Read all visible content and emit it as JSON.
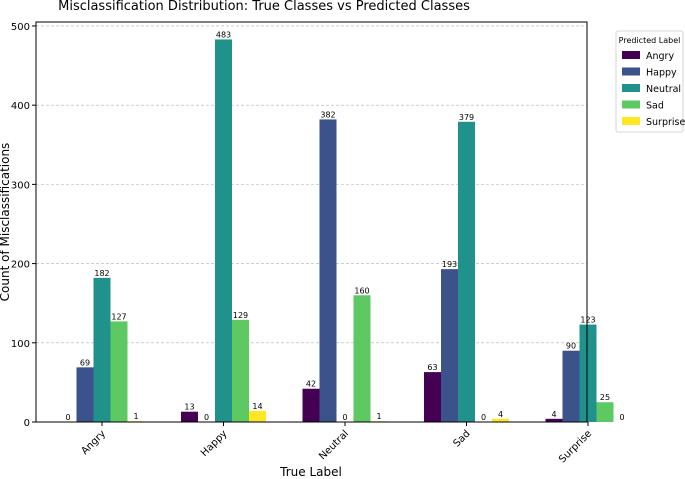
{
  "chart_data": {
    "type": "bar",
    "title": "Misclassification Distribution: True Classes vs Predicted Classes",
    "xlabel": "True Label",
    "ylabel": "Count of Misclassifications",
    "ylim": [
      0,
      505
    ],
    "yticks": [
      0,
      100,
      200,
      300,
      400,
      500
    ],
    "grid": true,
    "legend_title": "Predicted Label",
    "legend_position": "outside-right",
    "categories": [
      "Angry",
      "Happy",
      "Neutral",
      "Sad",
      "Surprise"
    ],
    "series": [
      {
        "name": "Angry",
        "color": "#440154",
        "values": [
          0,
          13,
          42,
          63,
          4
        ]
      },
      {
        "name": "Happy",
        "color": "#3b528b",
        "values": [
          69,
          0,
          382,
          193,
          90
        ]
      },
      {
        "name": "Neutral",
        "color": "#21918c",
        "values": [
          182,
          483,
          0,
          379,
          123
        ]
      },
      {
        "name": "Sad",
        "color": "#5ec962",
        "values": [
          127,
          129,
          160,
          0,
          25
        ]
      },
      {
        "name": "Surprise",
        "color": "#fde725",
        "values": [
          1,
          14,
          1,
          4,
          0
        ]
      }
    ]
  }
}
